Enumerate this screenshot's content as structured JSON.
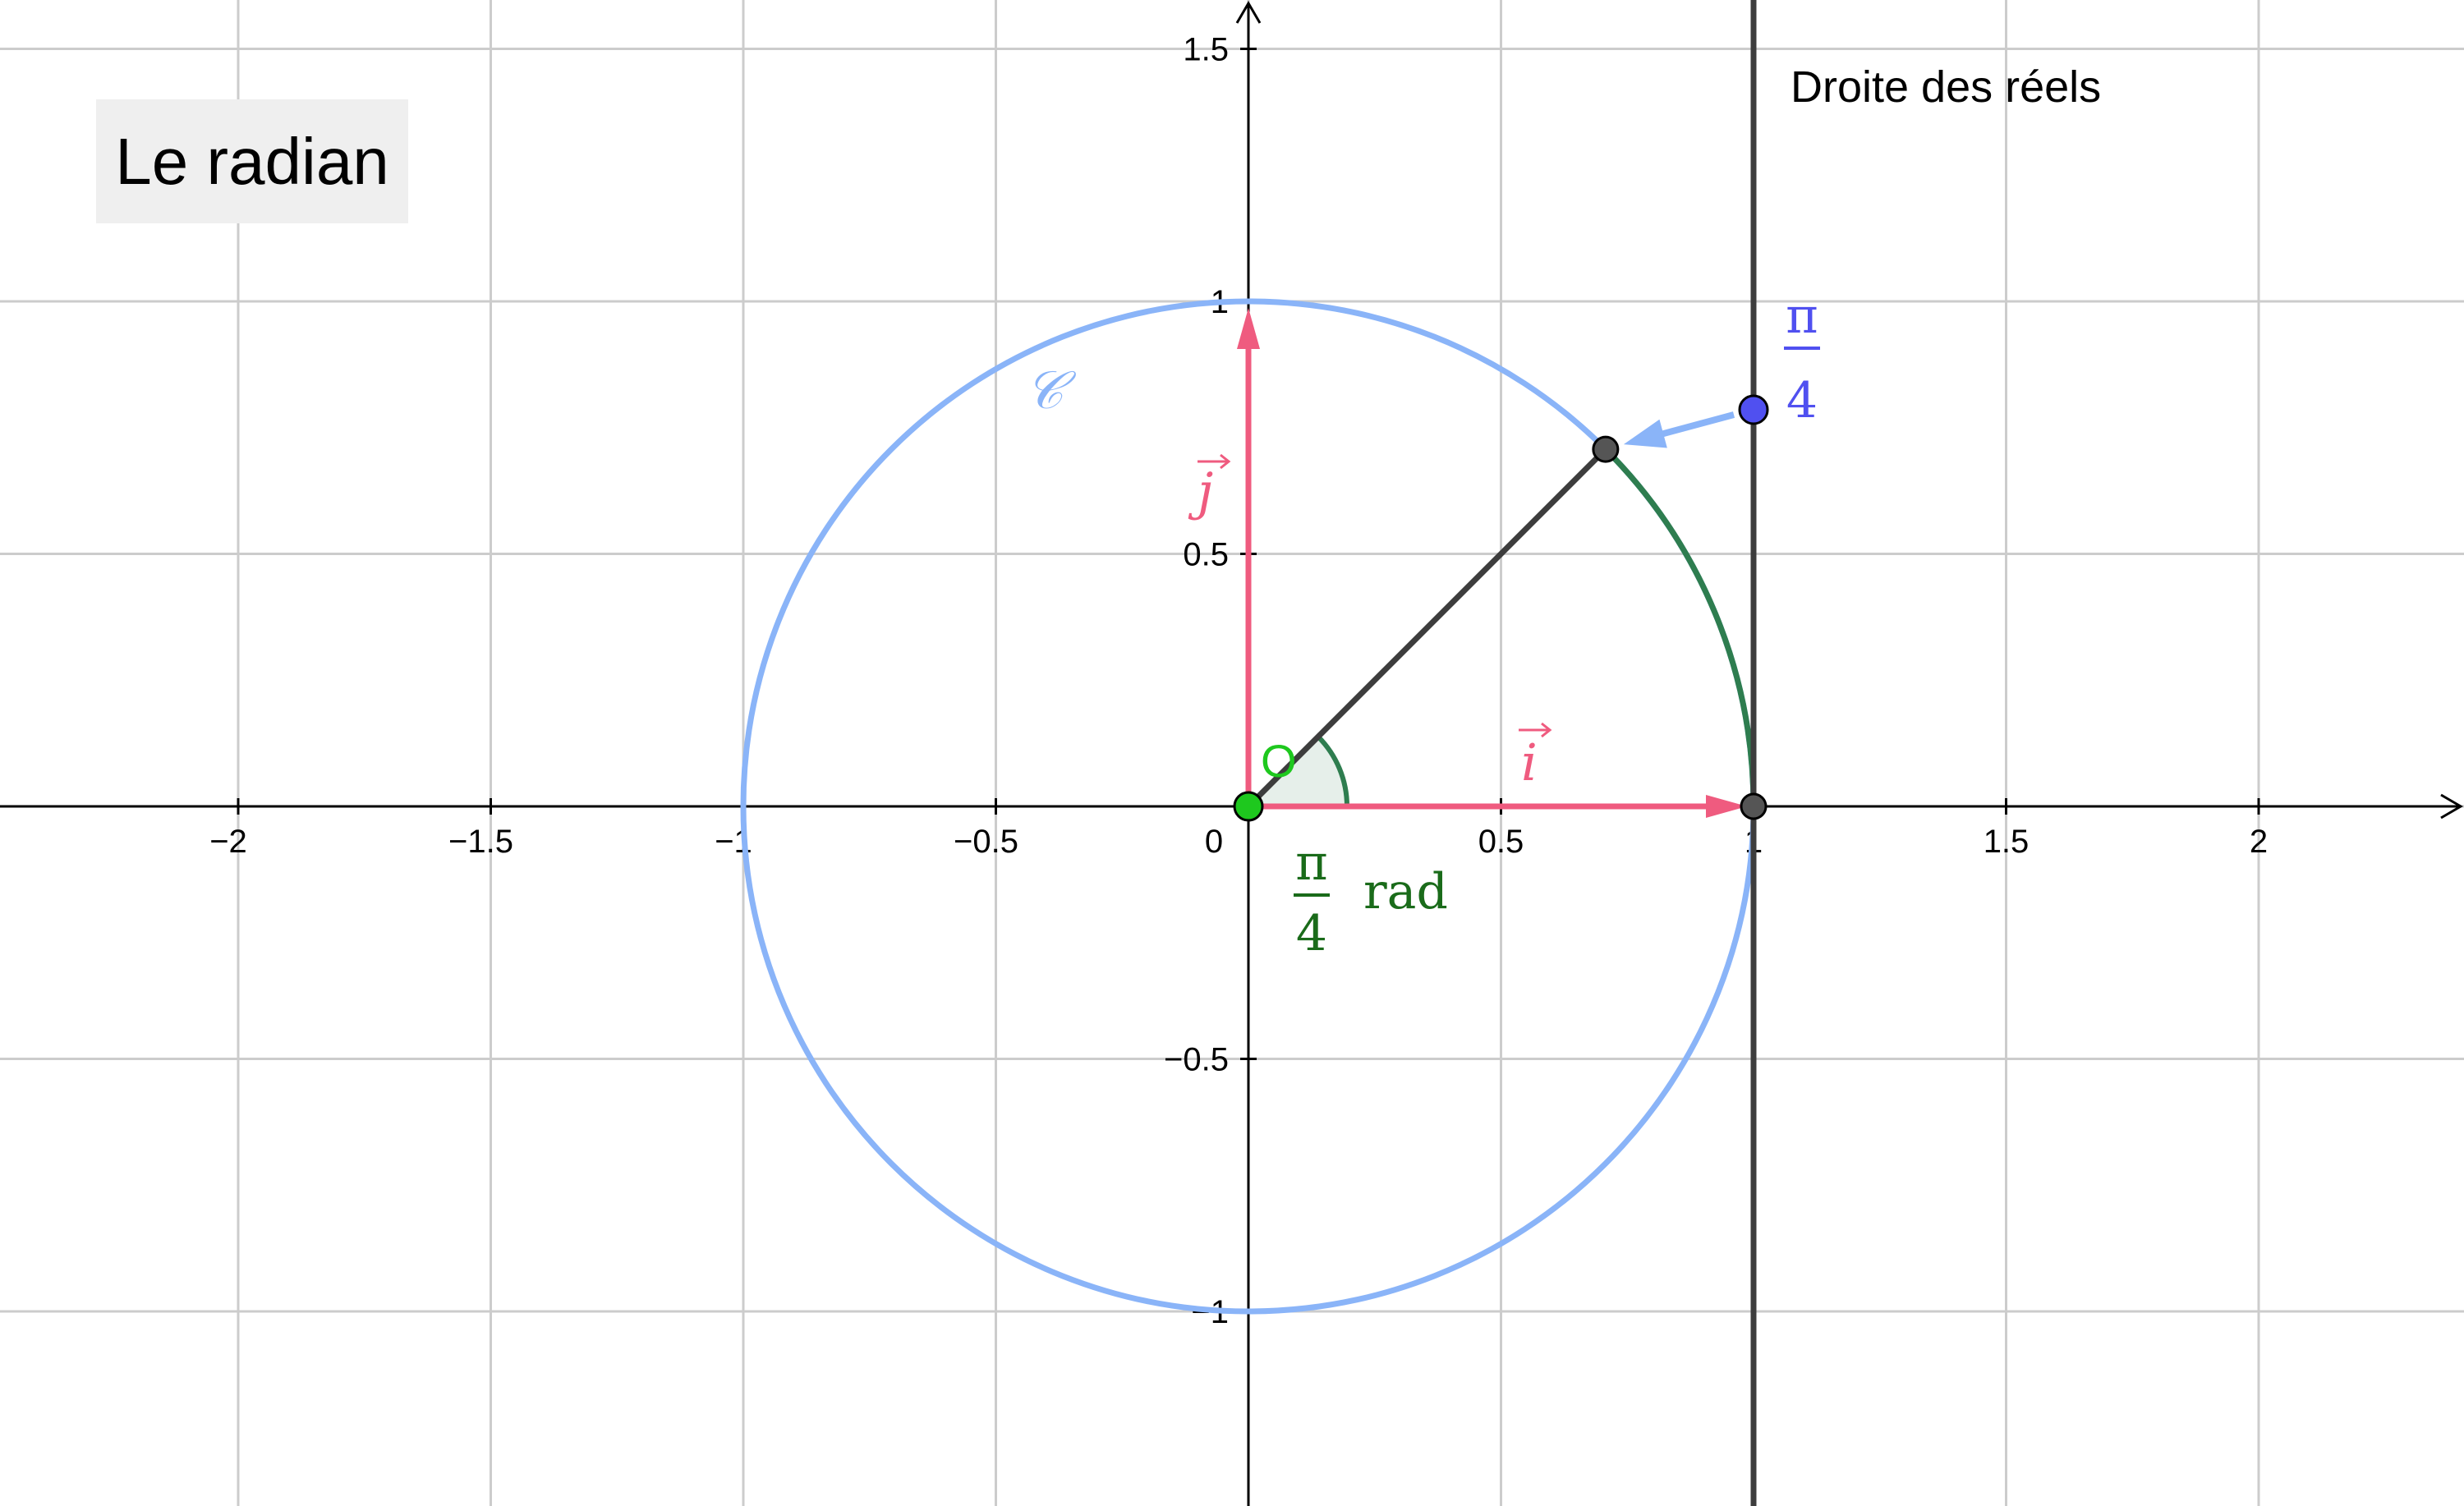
{
  "title": "Le radian",
  "colors": {
    "grid": "#cccccc",
    "axis": "#000000",
    "circle": "#8ab4f8",
    "vector": "#ef5b7f",
    "arc": "#2e7d4f",
    "segment": "#3d3d3d",
    "origin": "#1ec81e",
    "real_point": "#5050f0",
    "real_line": "#3d3d3d",
    "angle_text": "#1a6b1a"
  },
  "labels": {
    "circle": "𝒞",
    "vector_i": "i",
    "vector_j": "j",
    "origin": "O",
    "real_line": "Droite des réels",
    "angle_numerator": "π",
    "angle_denominator": "4",
    "angle_unit": "rad",
    "point_numerator": "π",
    "point_denominator": "4"
  },
  "axes": {
    "x_ticks": [
      {
        "value": -2,
        "label": "−2"
      },
      {
        "value": -1.5,
        "label": "−1.5"
      },
      {
        "value": -1,
        "label": "−1"
      },
      {
        "value": -0.5,
        "label": "−0.5"
      },
      {
        "value": 0,
        "label": "0"
      },
      {
        "value": 0.5,
        "label": "0.5"
      },
      {
        "value": 1,
        "label": "1"
      },
      {
        "value": 1.5,
        "label": "1.5"
      },
      {
        "value": 2,
        "label": "2"
      }
    ],
    "y_ticks": [
      {
        "value": 1.5,
        "label": "1.5"
      },
      {
        "value": 1,
        "label": "1"
      },
      {
        "value": 0.5,
        "label": "0.5"
      },
      {
        "value": -0.5,
        "label": "−0.5"
      },
      {
        "value": -1,
        "label": "−1"
      }
    ],
    "x_range": [
      -2.48,
      2.4
    ],
    "y_range": [
      -1.38,
      1.6
    ]
  },
  "geometry": {
    "angle": 0.7853981634,
    "circle_radius": 1,
    "real_line_x": 1,
    "real_point_y": 0.7853981634,
    "point_on_circle": [
      0.7071,
      0.7071
    ]
  }
}
